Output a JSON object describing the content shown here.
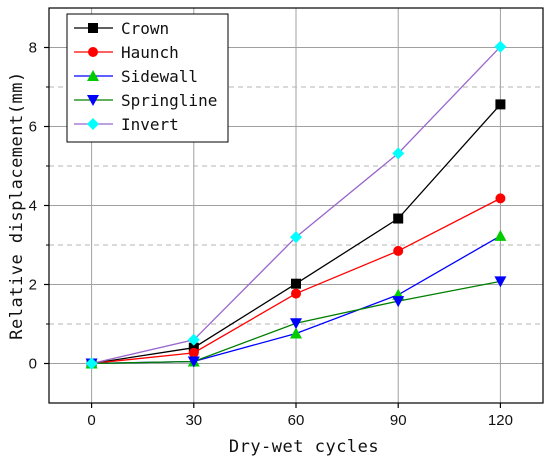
{
  "chart_data": {
    "type": "line",
    "title": "",
    "xlabel": "Dry-wet cycles",
    "ylabel": "Relative displacement(mm)",
    "xlim": [
      -12.5,
      132.5
    ],
    "ylim": [
      -1,
      9
    ],
    "x_ticks": [
      0,
      30,
      60,
      90,
      120
    ],
    "x_tick_labels": [
      "0",
      "30",
      "60",
      "90",
      "120"
    ],
    "y_ticks": [
      0,
      2,
      4,
      6,
      8
    ],
    "y_tick_labels": [
      "0",
      "2",
      "4",
      "6",
      "8"
    ],
    "grid": {
      "vertical_lines_at": [
        0,
        30,
        60,
        90,
        120
      ],
      "horizontal_solid_at": [
        0,
        2,
        4,
        6,
        8
      ],
      "horizontal_dashed_at": [
        1,
        3,
        5,
        7
      ]
    },
    "legend": {
      "position": "top-left"
    },
    "x": [
      0,
      30,
      60,
      90,
      120
    ],
    "series": [
      {
        "name": "Crown",
        "values": [
          0,
          0.4,
          2.02,
          3.67,
          6.56
        ],
        "color": "#000000",
        "marker": "square"
      },
      {
        "name": "Haunch",
        "values": [
          0,
          0.27,
          1.77,
          2.85,
          4.18
        ],
        "color": "#ff0000",
        "marker": "circle"
      },
      {
        "name": "Sidewall",
        "values": [
          0,
          0.05,
          0.76,
          1.74,
          3.23
        ],
        "color": "#0000ff",
        "marker_color": "#00cc00",
        "marker": "triangle-up"
      },
      {
        "name": "Springline",
        "values": [
          0,
          0.05,
          1.02,
          1.58,
          2.08
        ],
        "color": "#008000",
        "marker_color": "#0000ff",
        "marker": "triangle-down"
      },
      {
        "name": "Invert",
        "values": [
          0,
          0.6,
          3.2,
          5.32,
          8.02
        ],
        "color": "#9966cc",
        "marker_color": "#00ffff",
        "marker": "diamond"
      }
    ]
  }
}
